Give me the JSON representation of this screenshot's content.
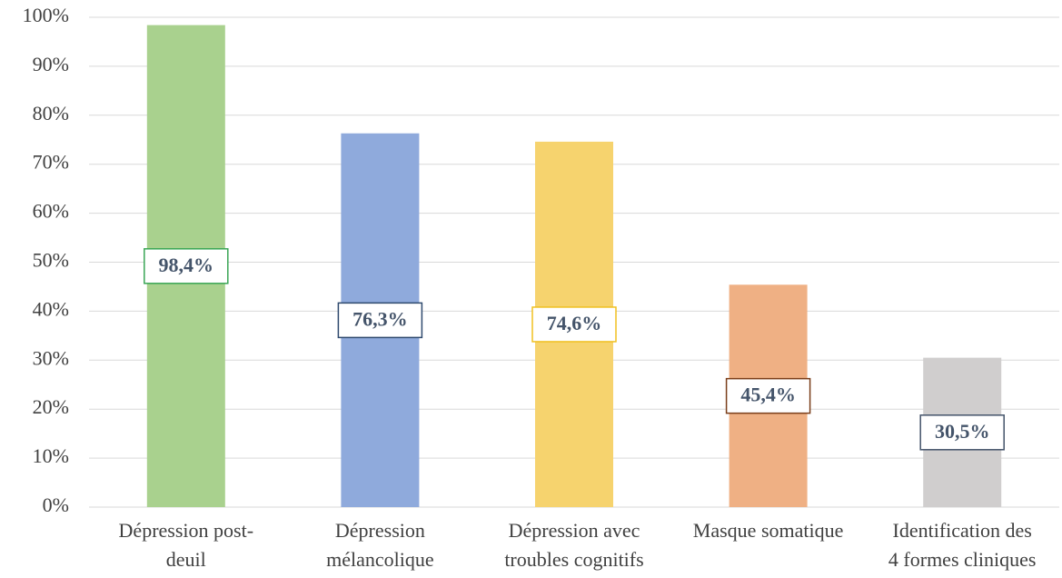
{
  "chart_data": {
    "type": "bar",
    "categories": [
      [
        "Dépression post-",
        "deuil"
      ],
      [
        "Dépression",
        "mélancolique"
      ],
      [
        "Dépression avec",
        "troubles cognitifs"
      ],
      [
        "Masque somatique"
      ],
      [
        "Identification des",
        "4 formes cliniques"
      ]
    ],
    "values": [
      98.4,
      76.3,
      74.6,
      45.4,
      30.5
    ],
    "value_labels": [
      "98,4%",
      "76,3%",
      "74,6%",
      "45,4%",
      "30,5%"
    ],
    "colors": [
      "#a9d18e",
      "#8faadc",
      "#f6d36e",
      "#efb084",
      "#d0cece"
    ],
    "label_border_colors": [
      "#3aa655",
      "#2f4a6e",
      "#f0c020",
      "#7a3e1a",
      "#44546a"
    ],
    "ylim": [
      0,
      100
    ],
    "yticks": [
      {
        "value": 0,
        "label": "0%"
      },
      {
        "value": 10,
        "label": "10%"
      },
      {
        "value": 20,
        "label": "20%"
      },
      {
        "value": 30,
        "label": "30%"
      },
      {
        "value": 40,
        "label": "40%"
      },
      {
        "value": 50,
        "label": "50%"
      },
      {
        "value": 60,
        "label": "60%"
      },
      {
        "value": 70,
        "label": "70%"
      },
      {
        "value": 80,
        "label": "80%"
      },
      {
        "value": 90,
        "label": "90%"
      },
      {
        "value": 100,
        "label": "100%"
      }
    ],
    "grid": true
  }
}
